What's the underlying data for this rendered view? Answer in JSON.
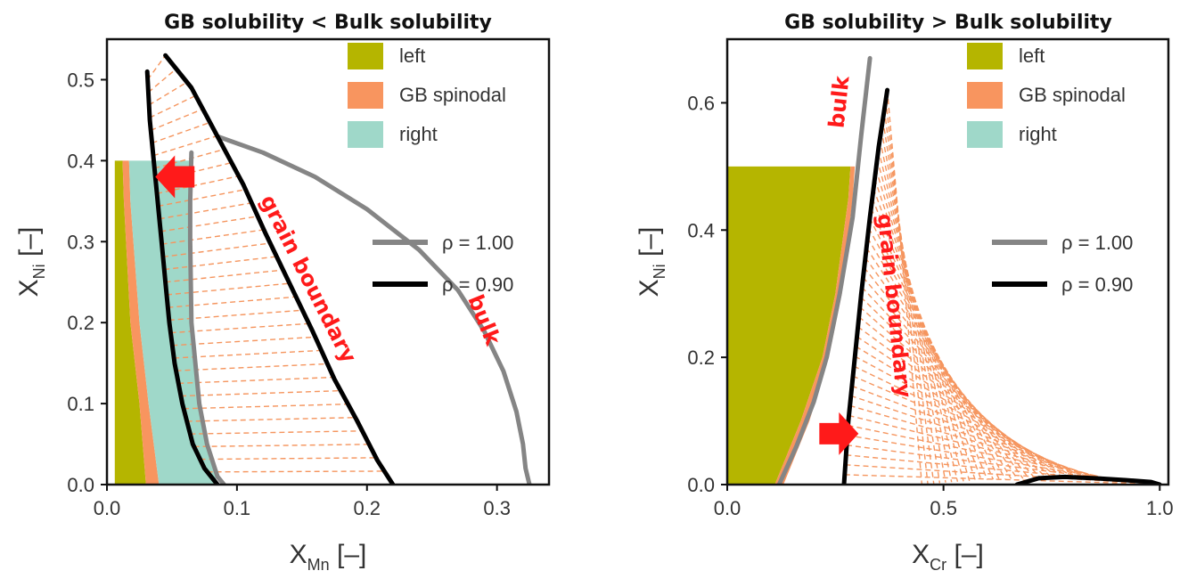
{
  "colors": {
    "left": "#b5b500",
    "gb_spinodal": "#f8955f",
    "right": "#9fd8c9",
    "rho100": "#858585",
    "rho090": "#000000",
    "tie": "#f5955e",
    "annotation": "#ff1a1a"
  },
  "chart_data": [
    {
      "type": "line",
      "title": "GB solubility < Bulk solubility",
      "xlabel": "X",
      "xlabel_sub": "Mn",
      "xlabel_unit": "[–]",
      "ylabel": "X",
      "ylabel_sub": "Ni",
      "ylabel_unit": "[–]",
      "xlim": [
        0,
        0.34
      ],
      "ylim": [
        0,
        0.55
      ],
      "xticks": [
        0.0,
        0.1,
        0.2,
        0.3
      ],
      "xtick_labels": [
        "0.0",
        "0.1",
        "0.2",
        "0.3"
      ],
      "yticks": [
        0.0,
        0.1,
        0.2,
        0.3,
        0.4,
        0.5
      ],
      "ytick_labels": [
        "0.0",
        "0.1",
        "0.2",
        "0.3",
        "0.4",
        "0.5"
      ],
      "regions": [
        {
          "name": "left",
          "polygon": [
            [
              0.006,
              0
            ],
            [
              0.006,
              0.4
            ],
            [
              0.012,
              0.4
            ],
            [
              0.013,
              0.35
            ],
            [
              0.018,
              0.2
            ],
            [
              0.025,
              0.1
            ],
            [
              0.03,
              0
            ]
          ]
        },
        {
          "name": "GB spinodal",
          "polygon": [
            [
              0.03,
              0
            ],
            [
              0.025,
              0.1
            ],
            [
              0.018,
              0.2
            ],
            [
              0.013,
              0.35
            ],
            [
              0.012,
              0.4
            ],
            [
              0.017,
              0.4
            ],
            [
              0.018,
              0.35
            ],
            [
              0.025,
              0.2
            ],
            [
              0.032,
              0.1
            ],
            [
              0.04,
              0
            ]
          ]
        },
        {
          "name": "right",
          "polygon": [
            [
              0.04,
              0
            ],
            [
              0.032,
              0.1
            ],
            [
              0.025,
              0.2
            ],
            [
              0.018,
              0.35
            ],
            [
              0.017,
              0.4
            ],
            [
              0.065,
              0.4
            ],
            [
              0.063,
              0.3
            ],
            [
              0.065,
              0.2
            ],
            [
              0.07,
              0.1
            ],
            [
              0.085,
              0
            ]
          ]
        }
      ],
      "series": [
        {
          "name": "ρ = 1.00",
          "style": "gray",
          "segments": [
            [
              [
                0.065,
                0.41
              ],
              [
                0.064,
                0.35
              ],
              [
                0.064,
                0.3
              ],
              [
                0.065,
                0.2
              ],
              [
                0.068,
                0.15
              ],
              [
                0.071,
                0.1
              ],
              [
                0.077,
                0.05
              ],
              [
                0.085,
                0.01
              ],
              [
                0.09,
                0
              ]
            ],
            [
              [
                0.085,
                0.43
              ],
              [
                0.12,
                0.41
              ],
              [
                0.16,
                0.38
              ],
              [
                0.2,
                0.34
              ],
              [
                0.24,
                0.29
              ],
              [
                0.27,
                0.24
              ],
              [
                0.29,
                0.19
              ],
              [
                0.305,
                0.14
              ],
              [
                0.315,
                0.09
              ],
              [
                0.32,
                0.05
              ],
              [
                0.322,
                0.02
              ],
              [
                0.325,
                0
              ]
            ]
          ]
        },
        {
          "name": "ρ = 0.90",
          "style": "black",
          "segments": [
            [
              [
                0.031,
                0.51
              ],
              [
                0.033,
                0.45
              ],
              [
                0.036,
                0.4
              ],
              [
                0.039,
                0.35
              ],
              [
                0.042,
                0.3
              ],
              [
                0.045,
                0.25
              ],
              [
                0.048,
                0.2
              ],
              [
                0.052,
                0.15
              ],
              [
                0.058,
                0.1
              ],
              [
                0.066,
                0.05
              ],
              [
                0.075,
                0.02
              ],
              [
                0.085,
                0
              ]
            ],
            [
              [
                0.045,
                0.53
              ],
              [
                0.065,
                0.49
              ],
              [
                0.085,
                0.43
              ],
              [
                0.105,
                0.37
              ],
              [
                0.122,
                0.31
              ],
              [
                0.14,
                0.25
              ],
              [
                0.158,
                0.19
              ],
              [
                0.175,
                0.13
              ],
              [
                0.192,
                0.08
              ],
              [
                0.208,
                0.03
              ],
              [
                0.22,
                0
              ]
            ]
          ]
        }
      ],
      "tie_lines": {
        "count": 32,
        "y_range": [
          0.0,
          0.5
        ]
      },
      "annotations": [
        {
          "text": "grain boundary",
          "x": 0.15,
          "y": 0.25,
          "angle": 63
        },
        {
          "text": "bulk",
          "x": 0.285,
          "y": 0.2,
          "angle": 68
        }
      ],
      "arrow": {
        "direction": "left",
        "x": 0.055,
        "y": 0.38
      },
      "legend": {
        "position": "top-right",
        "entries": [
          "left",
          "GB spinodal",
          "right"
        ]
      },
      "line_legend": {
        "position": "right",
        "entries": [
          "ρ = 1.00",
          "ρ = 0.90"
        ]
      }
    },
    {
      "type": "line",
      "title": "GB solubility > Bulk solubility",
      "xlabel": "X",
      "xlabel_sub": "Cr",
      "xlabel_unit": "[–]",
      "ylabel": "X",
      "ylabel_sub": "Ni",
      "ylabel_unit": "[–]",
      "xlim": [
        0,
        1.02
      ],
      "ylim": [
        0,
        0.7
      ],
      "xticks": [
        0.0,
        0.5,
        1.0
      ],
      "xtick_labels": [
        "0.0",
        "0.5",
        "1.0"
      ],
      "yticks": [
        0.0,
        0.2,
        0.4,
        0.6
      ],
      "ytick_labels": [
        "0.0",
        "0.2",
        "0.4",
        "0.6"
      ],
      "regions": [
        {
          "name": "left",
          "polygon": [
            [
              0,
              0
            ],
            [
              0,
              0.5
            ],
            [
              0.285,
              0.5
            ],
            [
              0.28,
              0.45
            ],
            [
              0.25,
              0.3
            ],
            [
              0.22,
              0.2
            ],
            [
              0.17,
              0.1
            ],
            [
              0.11,
              0
            ]
          ]
        },
        {
          "name": "GB spinodal",
          "polygon": [
            [
              0.11,
              0
            ],
            [
              0.17,
              0.1
            ],
            [
              0.22,
              0.2
            ],
            [
              0.25,
              0.3
            ],
            [
              0.28,
              0.45
            ],
            [
              0.285,
              0.5
            ],
            [
              0.295,
              0.5
            ],
            [
              0.29,
              0.45
            ],
            [
              0.265,
              0.3
            ],
            [
              0.235,
              0.2
            ],
            [
              0.19,
              0.1
            ],
            [
              0.13,
              0
            ]
          ]
        }
      ],
      "series": [
        {
          "name": "ρ = 1.00",
          "style": "gray",
          "segments": [
            [
              [
                0.12,
                0
              ],
              [
                0.16,
                0.06
              ],
              [
                0.2,
                0.13
              ],
              [
                0.23,
                0.2
              ],
              [
                0.26,
                0.3
              ],
              [
                0.29,
                0.42
              ],
              [
                0.31,
                0.55
              ],
              [
                0.33,
                0.67
              ]
            ]
          ]
        },
        {
          "name": "ρ = 0.90",
          "style": "black",
          "segments": [
            [
              [
                0.27,
                0
              ],
              [
                0.28,
                0.1
              ],
              [
                0.295,
                0.2
              ],
              [
                0.31,
                0.3
              ],
              [
                0.33,
                0.42
              ],
              [
                0.35,
                0.53
              ],
              [
                0.37,
                0.62
              ]
            ],
            [
              [
                0.67,
                0
              ],
              [
                0.72,
                0.01
              ],
              [
                0.78,
                0.012
              ],
              [
                0.85,
                0.01
              ],
              [
                0.92,
                0.007
              ],
              [
                0.98,
                0.004
              ],
              [
                1.0,
                0
              ]
            ]
          ]
        }
      ],
      "tie_lines": {
        "count": 40,
        "y_range": [
          0.0,
          0.62
        ]
      },
      "annotations": [
        {
          "text": "grain boundary",
          "x": 0.37,
          "y": 0.28,
          "angle": 84
        },
        {
          "text": "bulk",
          "x": 0.275,
          "y": 0.6,
          "angle": -84
        }
      ],
      "arrow": {
        "direction": "right",
        "x": 0.25,
        "y": 0.08
      },
      "legend": {
        "position": "top-right",
        "entries": [
          "left",
          "GB spinodal",
          "right"
        ]
      },
      "line_legend": {
        "position": "right",
        "entries": [
          "ρ = 1.00",
          "ρ = 0.90"
        ]
      }
    }
  ]
}
